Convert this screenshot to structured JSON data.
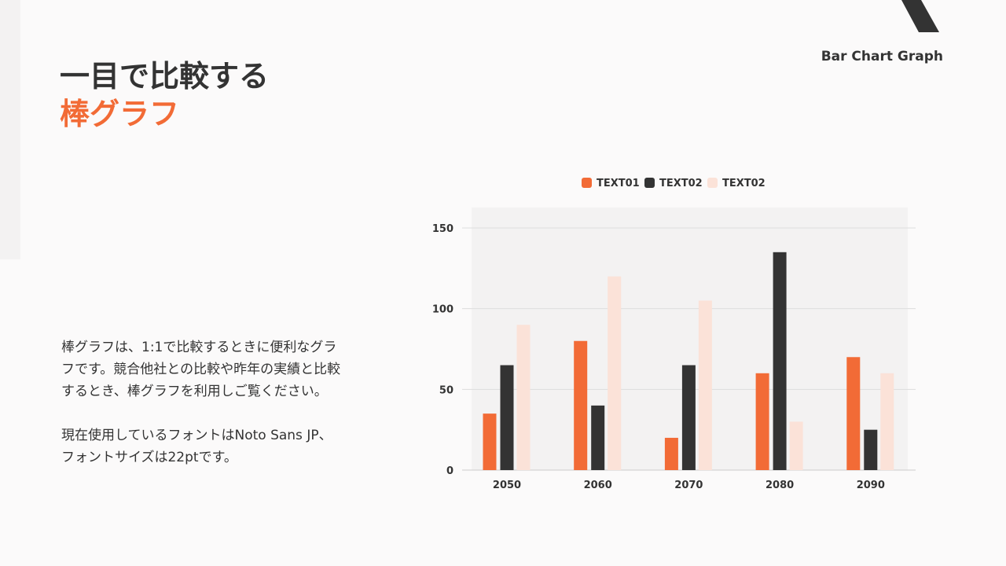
{
  "header": {
    "brand": "Bar Chart Graph",
    "title_line1": "一目で比較する",
    "title_line2": "棒グラフ"
  },
  "description": {
    "paragraph1": "棒グラフは、1:1で比較するときに便利なグラフです。競合他社との比較や昨年の実績と比較するとき、棒グラフを利用しご覧ください。",
    "paragraph2": "現在使用しているフォントはNoto Sans JP、フォントサイズは22ptです。"
  },
  "colors": {
    "accent": "#f26b36",
    "dark": "#333333",
    "light": "#fbe2d8"
  },
  "chart_data": {
    "type": "bar",
    "categories": [
      "2050",
      "2060",
      "2070",
      "2080",
      "2090"
    ],
    "series": [
      {
        "name": "TEXT01",
        "color": "#f26b36",
        "values": [
          35,
          80,
          20,
          60,
          70
        ]
      },
      {
        "name": "TEXT02",
        "color": "#333333",
        "values": [
          65,
          40,
          65,
          135,
          25
        ]
      },
      {
        "name": "TEXT02",
        "color": "#fbe2d8",
        "values": [
          90,
          120,
          105,
          30,
          60
        ]
      }
    ],
    "yticks": [
      0,
      50,
      100,
      150
    ],
    "ylim": [
      0,
      160
    ],
    "grid": true,
    "legend": "top"
  }
}
